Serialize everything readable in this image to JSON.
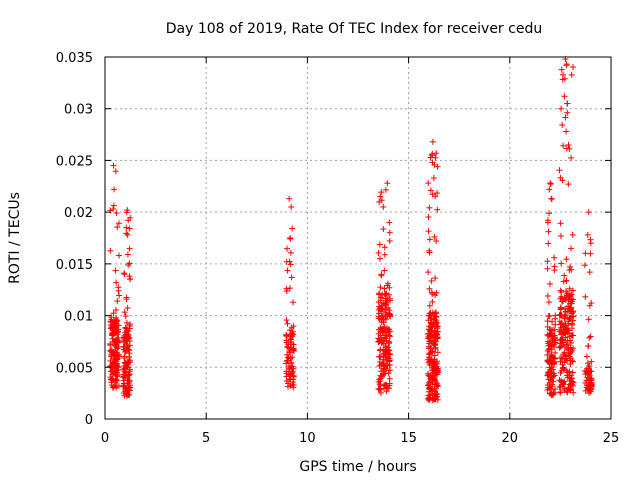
{
  "chart_data": {
    "type": "scatter",
    "title": "Day 108 of 2019, Rate Of TEC Index for receiver cedu",
    "xlabel": "GPS time / hours",
    "ylabel": "ROTI / TECUs",
    "xlim": [
      0,
      25
    ],
    "ylim": [
      0,
      0.035
    ],
    "grid": true,
    "marker": "+",
    "color": "#ff0000",
    "x_ticks": [
      0,
      5,
      10,
      15,
      20,
      25
    ],
    "x_tick_labels": [
      "0",
      "5",
      "10",
      "15",
      "20",
      "25"
    ],
    "y_ticks": [
      0,
      0.005,
      0.01,
      0.015,
      0.02,
      0.025,
      0.03,
      0.035
    ],
    "y_tick_labels": [
      "0",
      "0.005",
      "0.01",
      "0.015",
      "0.02",
      "0.025",
      "0.03",
      "0.035"
    ],
    "clusters": [
      {
        "x_range": [
          0.25,
          0.7
        ],
        "y_dense": [
          0.003,
          0.0095
        ],
        "y_sparse": [
          0.0095,
          0.0245
        ],
        "n_dense": 160,
        "n_sparse": 22
      },
      {
        "x_range": [
          0.9,
          1.25
        ],
        "y_dense": [
          0.0022,
          0.009
        ],
        "y_sparse": [
          0.009,
          0.0202
        ],
        "n_dense": 110,
        "n_sparse": 22
      },
      {
        "x_range": [
          8.95,
          9.35
        ],
        "y_dense": [
          0.003,
          0.008
        ],
        "y_sparse": [
          0.008,
          0.0213
        ],
        "n_dense": 60,
        "n_sparse": 28
      },
      {
        "x_range": [
          13.5,
          14.1
        ],
        "y_dense": [
          0.0025,
          0.012
        ],
        "y_sparse": [
          0.012,
          0.0228
        ],
        "n_dense": 170,
        "n_sparse": 30
      },
      {
        "x_range": [
          15.95,
          16.45
        ],
        "y_dense": [
          0.0018,
          0.01
        ],
        "y_sparse": [
          0.01,
          0.0268
        ],
        "n_dense": 200,
        "n_sparse": 40
      },
      {
        "x_range": [
          21.85,
          22.25
        ],
        "y_dense": [
          0.0022,
          0.009
        ],
        "y_sparse": [
          0.009,
          0.0228
        ],
        "n_dense": 110,
        "n_sparse": 22
      },
      {
        "x_range": [
          22.45,
          23.15
        ],
        "y_dense": [
          0.0025,
          0.012
        ],
        "y_sparse": [
          0.012,
          0.0345
        ],
        "n_dense": 190,
        "n_sparse": 40
      },
      {
        "x_range": [
          23.7,
          24.05
        ],
        "y_dense": [
          0.0025,
          0.005
        ],
        "y_sparse": [
          0.005,
          0.02
        ],
        "n_dense": 45,
        "n_sparse": 18
      }
    ],
    "highlight_points": [
      {
        "x": 0.42,
        "y": 0.0245
      },
      {
        "x": 0.45,
        "y": 0.0222
      },
      {
        "x": 0.4,
        "y": 0.0203
      },
      {
        "x": 1.1,
        "y": 0.0202
      },
      {
        "x": 1.05,
        "y": 0.0185
      },
      {
        "x": 1.12,
        "y": 0.0178
      },
      {
        "x": 9.1,
        "y": 0.0213
      },
      {
        "x": 9.2,
        "y": 0.0205
      },
      {
        "x": 9.15,
        "y": 0.0175
      },
      {
        "x": 13.95,
        "y": 0.0228
      },
      {
        "x": 13.6,
        "y": 0.0215
      },
      {
        "x": 13.75,
        "y": 0.0205
      },
      {
        "x": 16.2,
        "y": 0.0268
      },
      {
        "x": 16.15,
        "y": 0.0255
      },
      {
        "x": 16.18,
        "y": 0.0248
      },
      {
        "x": 16.25,
        "y": 0.0233
      },
      {
        "x": 16.1,
        "y": 0.0221
      },
      {
        "x": 22.0,
        "y": 0.0228
      },
      {
        "x": 21.95,
        "y": 0.0222
      },
      {
        "x": 22.05,
        "y": 0.0213
      },
      {
        "x": 22.75,
        "y": 0.0348
      },
      {
        "x": 22.8,
        "y": 0.0342
      },
      {
        "x": 22.7,
        "y": 0.0312
      },
      {
        "x": 22.85,
        "y": 0.0305
      },
      {
        "x": 22.78,
        "y": 0.0278
      },
      {
        "x": 22.9,
        "y": 0.0265
      },
      {
        "x": 23.9,
        "y": 0.02
      },
      {
        "x": 23.85,
        "y": 0.0178
      },
      {
        "x": 23.95,
        "y": 0.0142
      }
    ]
  }
}
